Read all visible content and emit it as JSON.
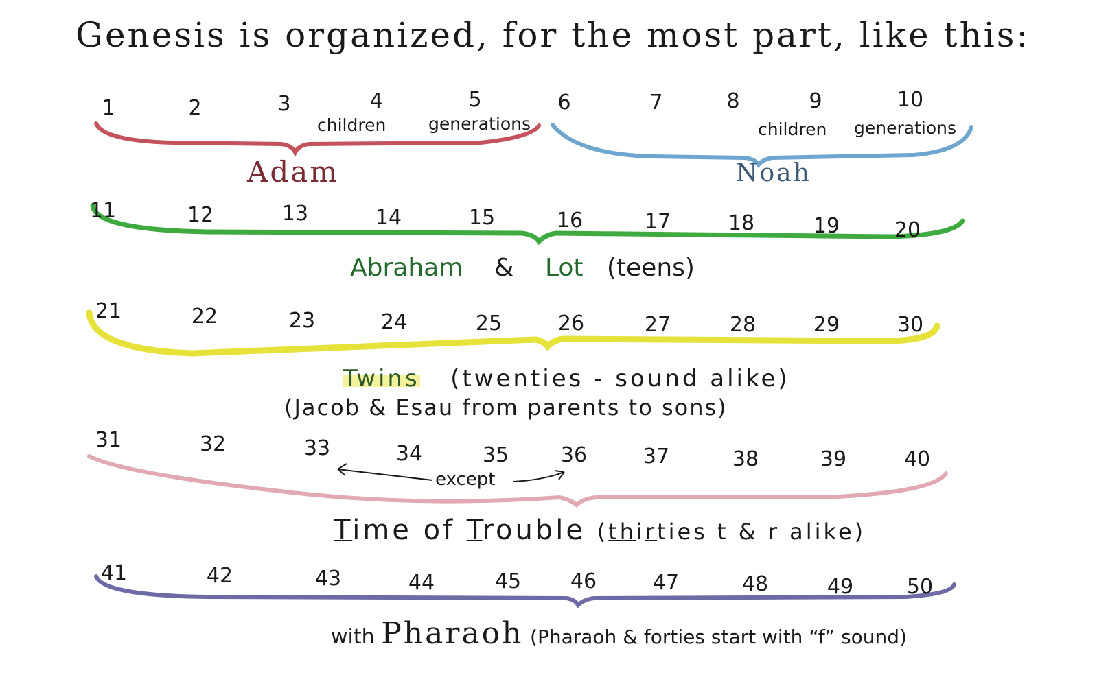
{
  "title": "Genesis is organized, for the most part, like this:",
  "row1": {
    "numbers": [
      "1",
      "2",
      "3",
      "4",
      "5",
      "6",
      "7",
      "8",
      "9",
      "10"
    ],
    "adam_note_children": "children",
    "adam_note_generations": "generations",
    "noah_note_children": "children",
    "noah_note_generations": "generations",
    "adam_label": "Adam",
    "noah_label": "Noah"
  },
  "row2": {
    "numbers": [
      "11",
      "12",
      "13",
      "14",
      "15",
      "16",
      "17",
      "18",
      "19",
      "20"
    ],
    "abraham": "Abraham",
    "amp": "&",
    "lot": "Lot",
    "note": "(teens)"
  },
  "row3": {
    "numbers": [
      "21",
      "22",
      "23",
      "24",
      "25",
      "26",
      "27",
      "28",
      "29",
      "30"
    ],
    "twins": "Twins",
    "note": "(twenties - sound alike)",
    "line2": "(Jacob & Esau from parents to sons)"
  },
  "row4": {
    "numbers": [
      "31",
      "32",
      "33",
      "34",
      "35",
      "36",
      "37",
      "38",
      "39",
      "40"
    ],
    "except": "except",
    "t_letter": "T",
    "ime_of": "ime of ",
    "t_letter2": "T",
    "rouble": "rouble ",
    "paren_open": "(",
    "th": "th",
    "i": "i",
    "r": "r",
    "ties": "ties",
    "rest": " t & r alike)"
  },
  "row5": {
    "numbers": [
      "41",
      "42",
      "43",
      "44",
      "45",
      "46",
      "47",
      "48",
      "49",
      "50"
    ],
    "with": "with",
    "pharaoh": "Pharaoh",
    "note": "(Pharaoh & forties start with “f” sound)"
  },
  "colors": {
    "adam": "#c4525d",
    "noah": "#6ea6cf",
    "abraham": "#3faa3f",
    "twins": "#e6e23a",
    "trouble": "#e0a9b3",
    "pharaoh": "#6e6aa6"
  }
}
